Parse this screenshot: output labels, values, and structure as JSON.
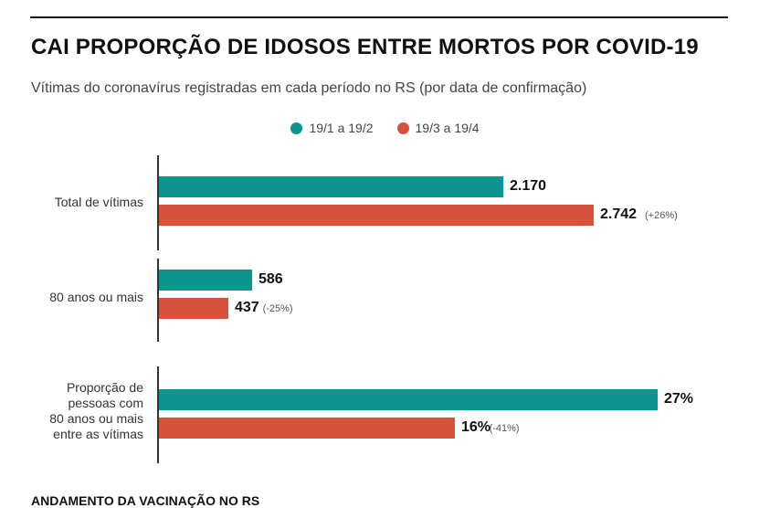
{
  "title": "CAI PROPORÇÃO DE IDOSOS ENTRE MORTOS POR COVID-19",
  "subtitle": "Vítimas do coronavírus registradas em cada período no RS (por data de confirmação)",
  "footer_heading": "ANDAMENTO DA VACINAÇÃO NO RS",
  "colors": {
    "series1": "#0c948f",
    "series2": "#d4533a"
  },
  "chart_data": [
    {
      "type": "bar",
      "orientation": "horizontal",
      "category": "Total de vítimas",
      "xlim": [
        0,
        2742
      ],
      "series": [
        {
          "name": "19/1 a 19/2",
          "value": 2170,
          "label": "2.170",
          "change": ""
        },
        {
          "name": "19/3 a 19/4",
          "value": 2742,
          "label": "2.742",
          "change": "(+26%)"
        }
      ]
    },
    {
      "type": "bar",
      "orientation": "horizontal",
      "category": "80 anos ou mais",
      "xlim": [
        0,
        2742
      ],
      "series": [
        {
          "name": "19/1 a 19/2",
          "value": 586,
          "label": "586",
          "change": ""
        },
        {
          "name": "19/3 a 19/4",
          "value": 437,
          "label": "437",
          "change": "(-25%)"
        }
      ]
    },
    {
      "type": "bar",
      "orientation": "horizontal",
      "category": "Proporção de pessoas com 80 anos ou mais entre as vítimas",
      "xlim": [
        0,
        27
      ],
      "series": [
        {
          "name": "19/1 a 19/2",
          "value": 27,
          "label": "27%",
          "change": ""
        },
        {
          "name": "19/3 a 19/4",
          "value": 16,
          "label": "16%",
          "change": "(-41%)"
        }
      ]
    }
  ]
}
